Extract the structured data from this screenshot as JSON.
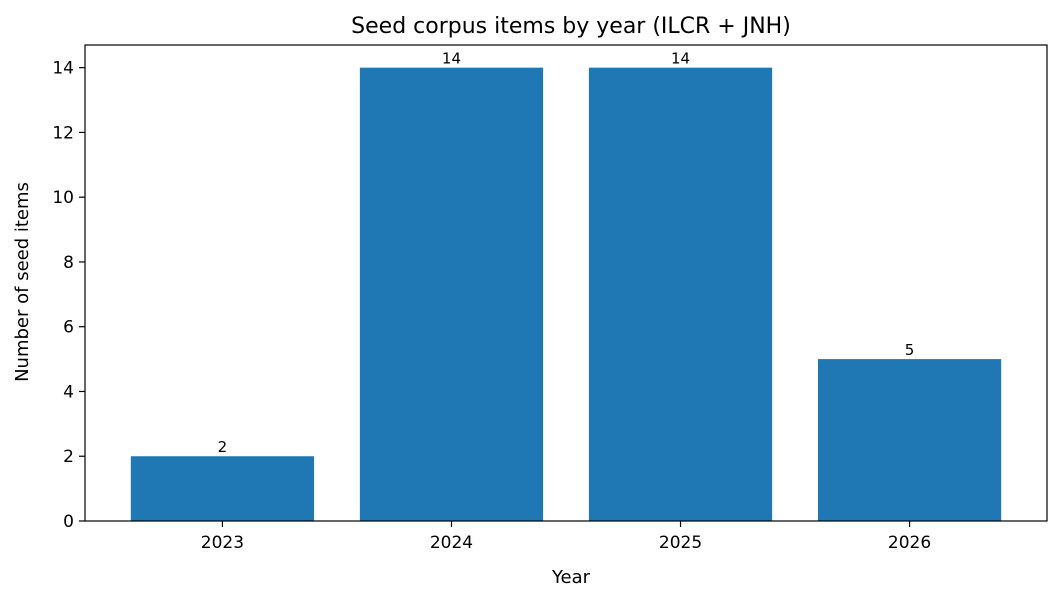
{
  "chart_data": {
    "type": "bar",
    "title": "Seed corpus items by year (ILCR + JNH)",
    "xlabel": "Year",
    "ylabel": "Number of seed items",
    "categories": [
      "2023",
      "2024",
      "2025",
      "2026"
    ],
    "values": [
      2,
      14,
      14,
      5
    ],
    "data_labels": [
      "2",
      "14",
      "14",
      "5"
    ],
    "ylim": [
      0,
      14.7
    ],
    "yticks": [
      0,
      2,
      4,
      6,
      8,
      10,
      12,
      14
    ],
    "grid": false,
    "legend": "none",
    "bar_color": "#1f77b4"
  }
}
